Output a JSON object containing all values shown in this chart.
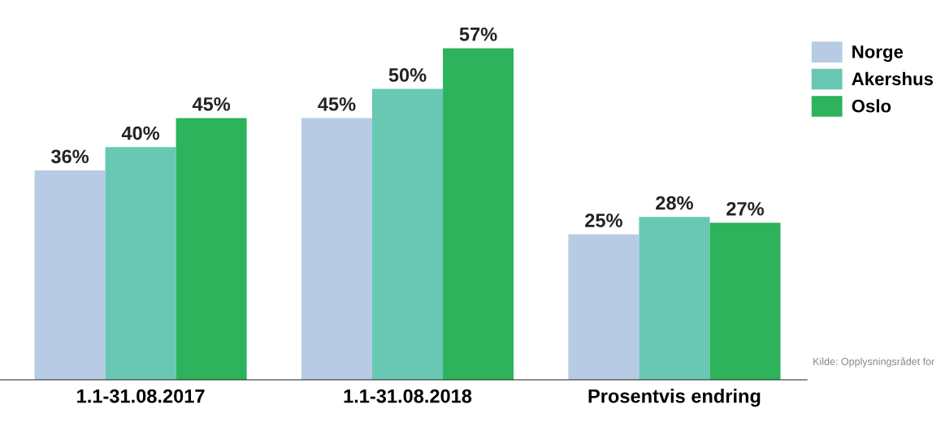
{
  "chart_data": {
    "type": "bar",
    "categories": [
      "1.1-31.08.2017",
      "1.1-31.08.2018",
      "Prosentvis endring"
    ],
    "series": [
      {
        "name": "Norge",
        "color": "#b7cce4",
        "values": [
          36,
          45,
          25
        ],
        "value_labels": [
          "36%",
          "45%",
          "25%"
        ]
      },
      {
        "name": "Akershus",
        "color": "#68c8b4",
        "values": [
          40,
          50,
          28
        ],
        "value_labels": [
          "40%",
          "50%",
          "28%"
        ]
      },
      {
        "name": "Oslo",
        "color": "#2db35b",
        "values": [
          45,
          57,
          27
        ],
        "value_labels": [
          "45%",
          "57%",
          "27%"
        ]
      }
    ],
    "legend": "top right",
    "annotations": [
      "Kilde: Opplysningsrådet for"
    ]
  }
}
